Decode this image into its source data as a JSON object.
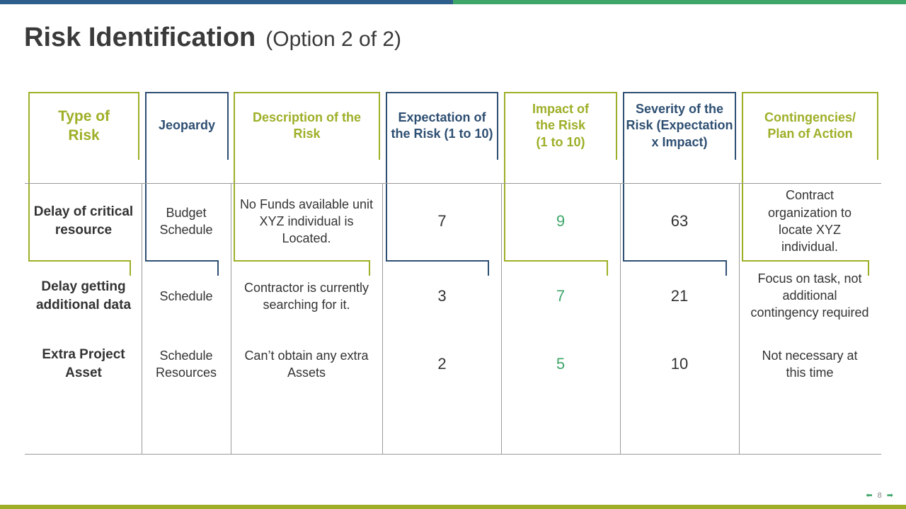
{
  "colors": {
    "blue": "#2e5f8c",
    "green": "#3fa66a",
    "olive": "#9eaf27"
  },
  "title": {
    "main": "Risk Identification",
    "sub": "(Option 2 of 2)"
  },
  "headers": {
    "type": "Type of Risk",
    "jeopardy": "Jeopardy",
    "description": "Description of the Risk",
    "expectation": "Expectation of the Risk (1 to 10)",
    "impact": "Impact of the Risk (1 to 10)",
    "severity": "Severity of the Risk (Expectation x Impact)",
    "contingencies": "Contingencies/ Plan of Action"
  },
  "rows": [
    {
      "type": "Delay of critical resource",
      "jeopardy": "Budget Schedule",
      "description": "No Funds available unit XYZ individual is Located.",
      "expectation": "7",
      "impact": "9",
      "severity": "63",
      "contingencies": "Contract organization to locate XYZ individual."
    },
    {
      "type": "Delay getting additional data",
      "jeopardy": "Schedule",
      "description": "Contractor is currently searching for it.",
      "expectation": "3",
      "impact": "7",
      "severity": "21",
      "contingencies": "Focus on task, not additional contingency required"
    },
    {
      "type": "Extra Project Asset",
      "jeopardy": "Schedule Resources",
      "description": "Can’t obtain any extra Assets",
      "expectation": "2",
      "impact": "5",
      "severity": "10",
      "contingencies": "Not necessary at this time"
    }
  ],
  "footer": {
    "page_number": "8",
    "prev_arrow": "⬅",
    "next_arrow": "➡"
  }
}
